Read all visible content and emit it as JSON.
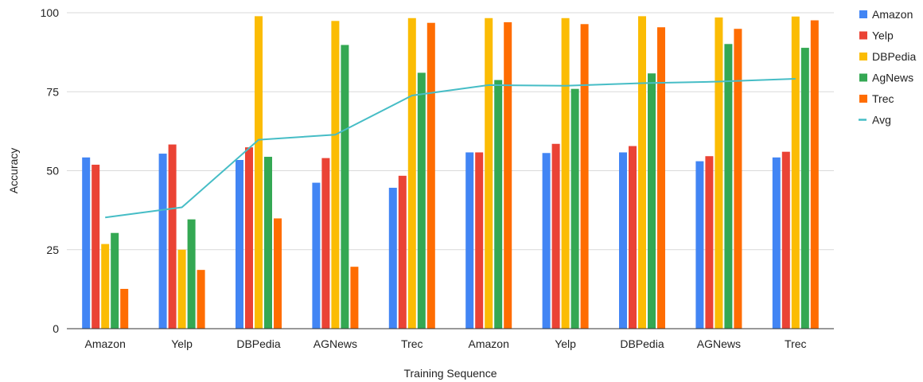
{
  "chart_data": {
    "type": "bar",
    "xlabel": "Training Sequence",
    "ylabel": "Accuracy",
    "ylim": [
      0,
      100
    ],
    "yticks": [
      0,
      25,
      50,
      75,
      100
    ],
    "grid": true,
    "legend_position": "right",
    "categories": [
      "Amazon",
      "Yelp",
      "DBPedia",
      "AGNews",
      "Trec",
      "Amazon",
      "Yelp",
      "DBPedia",
      "AGNews",
      "Trec"
    ],
    "series": [
      {
        "name": "Amazon",
        "color": "#4285F4",
        "values": [
          54.2,
          55.4,
          53.4,
          46.2,
          44.6,
          55.8,
          55.6,
          55.8,
          53.0,
          54.2
        ]
      },
      {
        "name": "Yelp",
        "color": "#EA4335",
        "values": [
          51.9,
          58.3,
          57.4,
          54.0,
          48.4,
          55.8,
          58.5,
          57.8,
          54.6,
          56.0
        ]
      },
      {
        "name": "DBPedia",
        "color": "#FBBC04",
        "values": [
          26.8,
          25.0,
          98.9,
          97.4,
          98.3,
          98.3,
          98.3,
          98.9,
          98.5,
          98.8
        ]
      },
      {
        "name": "AgNews",
        "color": "#34A853",
        "values": [
          30.3,
          34.6,
          54.4,
          89.8,
          81.0,
          78.7,
          75.9,
          80.8,
          90.1,
          88.9
        ]
      },
      {
        "name": "Trec",
        "color": "#FF6D01",
        "values": [
          12.6,
          18.6,
          34.9,
          19.6,
          96.8,
          97.0,
          96.4,
          95.4,
          94.9,
          97.6
        ]
      }
    ],
    "line_series": {
      "name": "Avg",
      "type": "line",
      "color": "#46BDC6",
      "values": [
        35.2,
        38.4,
        59.8,
        61.4,
        73.8,
        77.1,
        76.9,
        77.7,
        78.2,
        79.1
      ]
    }
  }
}
